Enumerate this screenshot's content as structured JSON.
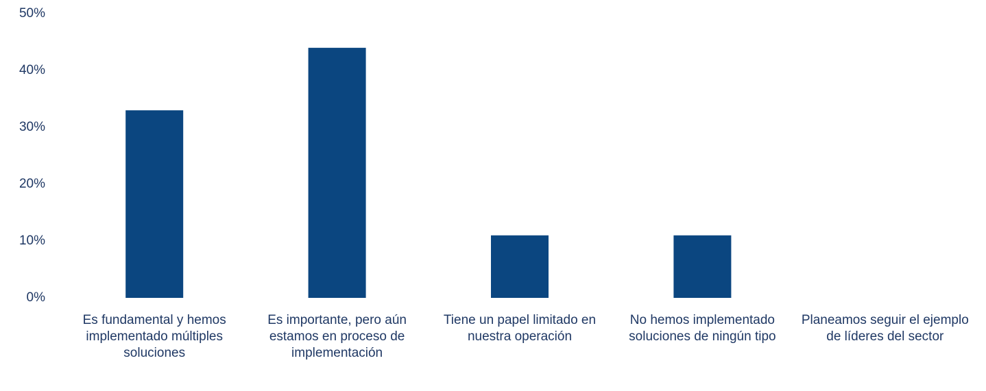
{
  "chart_data": {
    "type": "bar",
    "categories": [
      "Es fundamental y hemos implementado múltiples soluciones",
      "Es importante, pero aún estamos en proceso de implementación",
      "Tiene un papel limitado en nuestra operación",
      "No hemos implementado soluciones de ningún tipo",
      "Planeamos seguir el ejemplo de líderes del sector"
    ],
    "values": [
      33,
      44,
      11,
      11,
      0
    ],
    "color": "#0b4680",
    "ylim": [
      0,
      50
    ],
    "yticks": [
      {
        "value": 0,
        "label": "0%"
      },
      {
        "value": 10,
        "label": "10%"
      },
      {
        "value": 20,
        "label": "20%"
      },
      {
        "value": 30,
        "label": "30%"
      },
      {
        "value": 40,
        "label": "40%"
      },
      {
        "value": 50,
        "label": "50%"
      }
    ],
    "grid": false
  }
}
